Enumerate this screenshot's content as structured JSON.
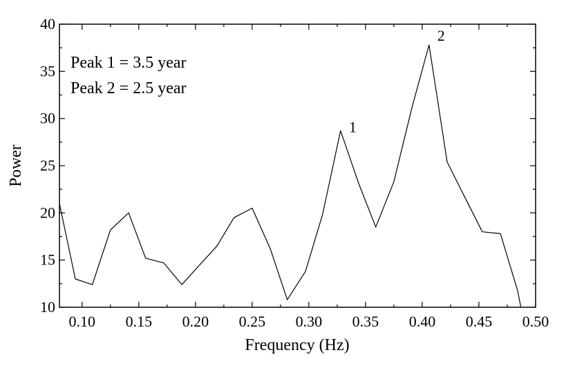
{
  "chart_data": {
    "type": "line",
    "title": "",
    "xlabel": "Frequency (Hz)",
    "ylabel": "Power",
    "xlim": [
      0.08,
      0.5
    ],
    "ylim": [
      10,
      40
    ],
    "x_ticks": [
      "0.10",
      "0.15",
      "0.20",
      "0.25",
      "0.30",
      "0.35",
      "0.40",
      "0.45",
      "0.50"
    ],
    "x_tick_values": [
      0.1,
      0.15,
      0.2,
      0.25,
      0.3,
      0.35,
      0.4,
      0.45,
      0.5
    ],
    "y_ticks": [
      "10",
      "15",
      "20",
      "25",
      "30",
      "35",
      "40"
    ],
    "y_tick_values": [
      10,
      15,
      20,
      25,
      30,
      35,
      40
    ],
    "grid": false,
    "line_color": "#000000",
    "series": [
      {
        "x": [
          0.08,
          0.094,
          0.109,
          0.125,
          0.141,
          0.156,
          0.172,
          0.188,
          0.203,
          0.219,
          0.234,
          0.25,
          0.266,
          0.281,
          0.297,
          0.312,
          0.328,
          0.344,
          0.359,
          0.375,
          0.391,
          0.406,
          0.422,
          0.437,
          0.453,
          0.469,
          0.484,
          0.487
        ],
        "y": [
          21.0,
          13.0,
          12.4,
          18.2,
          20.0,
          15.2,
          14.7,
          12.4,
          14.4,
          16.5,
          19.5,
          20.5,
          16.2,
          10.8,
          13.8,
          19.8,
          28.7,
          23.1,
          18.5,
          23.3,
          31.2,
          37.8,
          25.4,
          21.8,
          18.0,
          17.8,
          11.8,
          10.0
        ]
      }
    ],
    "annotations": {
      "legend_lines": [
        "Peak 1 = 3.5 year",
        "Peak 2 = 2.5 year"
      ],
      "peaks": [
        {
          "label": "1",
          "x": 0.328,
          "y": 28.7
        },
        {
          "label": "2",
          "x": 0.406,
          "y": 37.8
        }
      ]
    }
  }
}
